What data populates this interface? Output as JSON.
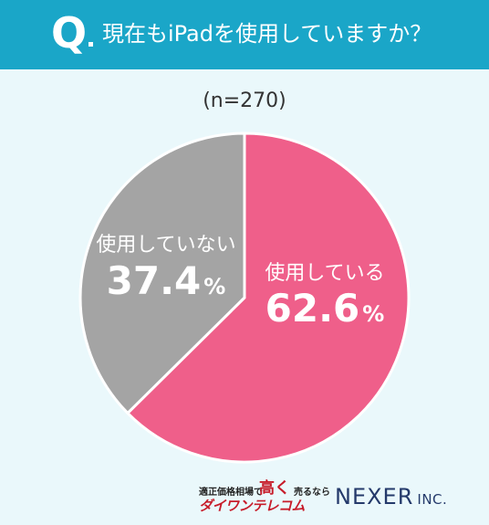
{
  "header": {
    "q_mark": "Q",
    "question": "現在もiPadを使用していますか？"
  },
  "sample_size": "(n=270)",
  "chart_data": {
    "type": "pie",
    "title": "現在もiPadを使用していますか？",
    "slices": [
      {
        "label": "使用している",
        "value": 62.6,
        "display": "62.6",
        "unit": "%",
        "color": "#ef5f8a"
      },
      {
        "label": "使用していない",
        "value": 37.4,
        "display": "37.4",
        "unit": "%",
        "color": "#a4a4a4"
      }
    ]
  },
  "footer": {
    "left_small": "適正価格相場で",
    "left_big": "高く",
    "left_small2": "売るなら",
    "left_brand": "ダイワンテレコム",
    "right_main": "NEXER",
    "right_inc": "INC."
  }
}
